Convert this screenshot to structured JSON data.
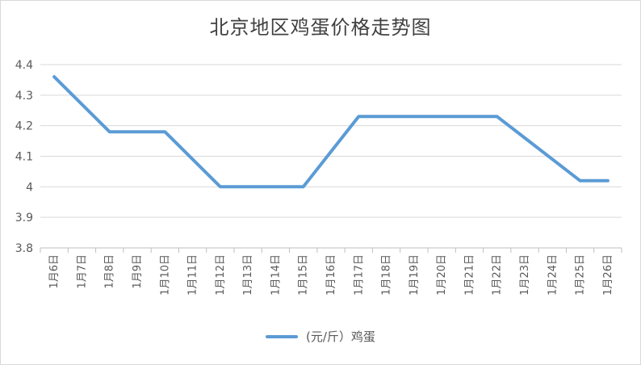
{
  "chart_data": {
    "type": "line",
    "title": "北京地区鸡蛋价格走势图",
    "categories": [
      "1月6日",
      "1月7日",
      "1月8日",
      "1月9日",
      "1月10日",
      "1月11日",
      "1月12日",
      "1月13日",
      "1月14日",
      "1月15日",
      "1月16日",
      "1月17日",
      "1月18日",
      "1月19日",
      "1月20日",
      "1月21日",
      "1月22日",
      "1月23日",
      "1月24日",
      "1月25日",
      "1月26日"
    ],
    "y_ticks": [
      "4.4",
      "4.3",
      "4.2",
      "4.1",
      "4",
      "3.9",
      "3.8"
    ],
    "ylim": [
      3.8,
      4.4
    ],
    "grid": true,
    "legend_position": "bottom",
    "series": [
      {
        "name": "(元/斤）鸡蛋",
        "color": "#5b9bd5",
        "values": [
          4.36,
          null,
          4.18,
          4.18,
          4.18,
          null,
          4.0,
          4.0,
          4.0,
          4.0,
          null,
          4.23,
          4.23,
          4.23,
          4.23,
          4.23,
          4.23,
          null,
          null,
          4.02,
          4.02
        ]
      }
    ]
  }
}
